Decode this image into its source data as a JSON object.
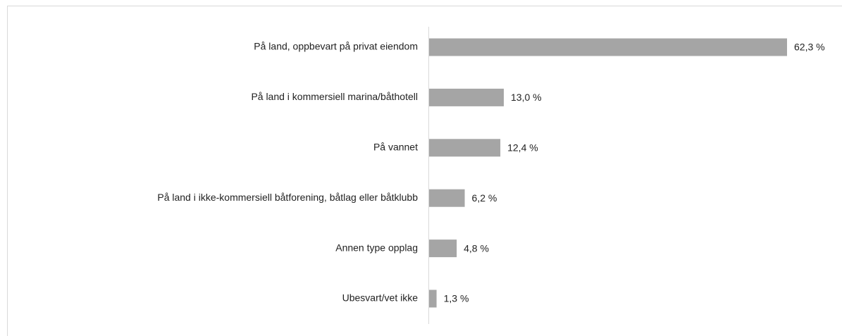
{
  "chart_data": {
    "type": "bar",
    "orientation": "horizontal",
    "categories": [
      "På land, oppbevart på privat eiendom",
      "På land i kommersiell marina/båthotell",
      "På vannet",
      "På land i ikke-kommersiell båtforening, båtlag eller båtklubb",
      "Annen type opplag",
      "Ubesvart/vet ikke"
    ],
    "values": [
      62.3,
      13.0,
      12.4,
      6.2,
      4.8,
      1.3
    ],
    "value_labels": [
      "62,3 %",
      "13,0 %",
      "12,4 %",
      "6,2 %",
      "4,8 %",
      "1,3 %"
    ],
    "color": "#a5a5a5"
  }
}
